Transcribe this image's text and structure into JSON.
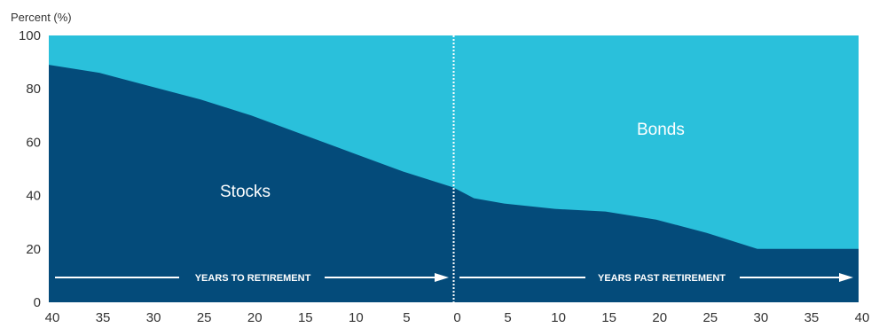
{
  "chart_data": {
    "type": "area",
    "ylabel": "Percent (%)",
    "ylim": [
      0,
      100
    ],
    "yticks": [
      "100",
      "80",
      "60",
      "40",
      "20",
      "0"
    ],
    "xticks": [
      "40",
      "35",
      "30",
      "25",
      "20",
      "15",
      "10",
      "5",
      "0",
      "5",
      "10",
      "15",
      "20",
      "25",
      "30",
      "35",
      "40"
    ],
    "x": [
      -40,
      -35,
      -30,
      -25,
      -20,
      -15,
      -10,
      -5,
      0,
      2,
      5,
      10,
      15,
      20,
      25,
      30,
      35,
      40
    ],
    "series": [
      {
        "name": "Stocks",
        "values": [
          89,
          86,
          81,
          76,
          70,
          63,
          56,
          49,
          43,
          39,
          37,
          35,
          34,
          31,
          26,
          20,
          20,
          20
        ]
      },
      {
        "name": "Bonds",
        "values": [
          11,
          14,
          19,
          24,
          30,
          37,
          44,
          51,
          57,
          61,
          63,
          65,
          66,
          69,
          74,
          80,
          80,
          80
        ]
      }
    ],
    "annotations": {
      "pre": "YEARS TO RETIREMENT",
      "post": "YEARS PAST RETIREMENT"
    },
    "colors": {
      "stocks": "#044b7a",
      "bonds": "#2ac0db",
      "arrow": "#ffffff",
      "divider": "#ffffff"
    },
    "grid": false,
    "stacked": true
  }
}
